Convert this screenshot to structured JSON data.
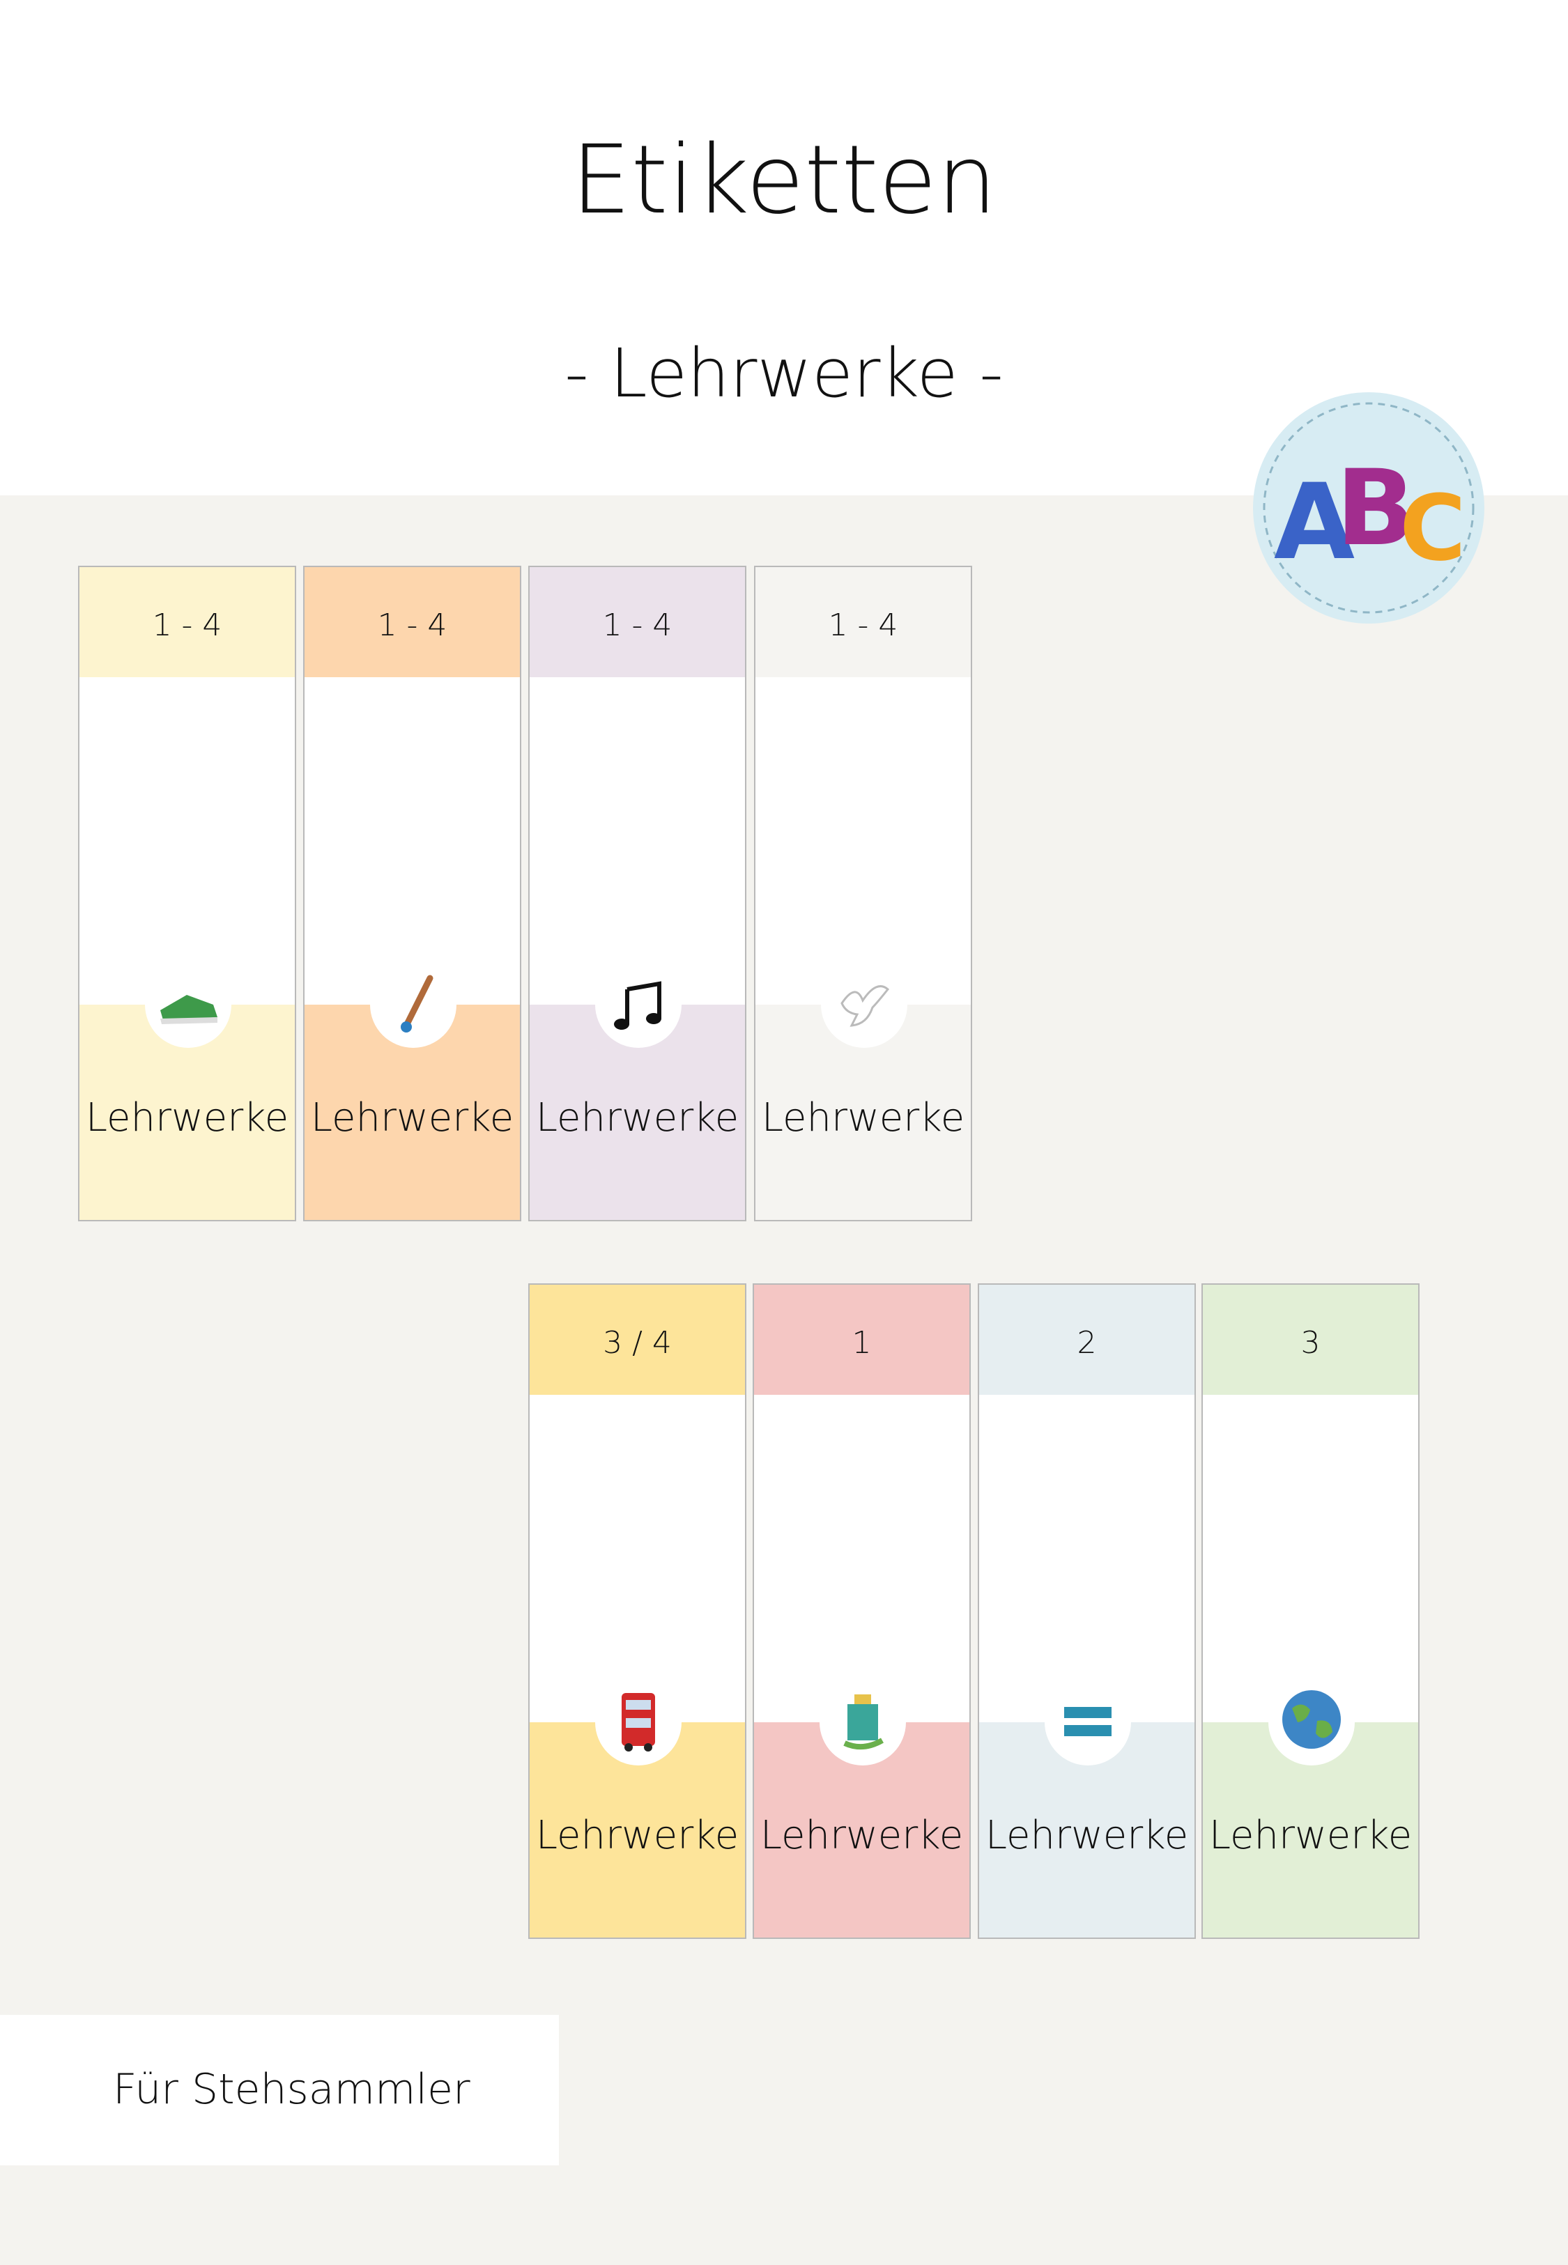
{
  "header": {
    "title": "Etiketten",
    "subtitle": "- Lehrwerke -"
  },
  "logo": {
    "letters": [
      "A",
      "B",
      "C"
    ]
  },
  "labels": {
    "row1": [
      {
        "top": "1 - 4",
        "bottom": "Lehrwerke"
      },
      {
        "top": "1 - 4",
        "bottom": "Lehrwerke"
      },
      {
        "top": "1 - 4",
        "bottom": "Lehrwerke"
      },
      {
        "top": "1 - 4",
        "bottom": "Lehrwerke"
      }
    ],
    "row2": [
      {
        "top": "3 / 4",
        "bottom": "Lehrwerke"
      },
      {
        "top": "1",
        "bottom": "Lehrwerke"
      },
      {
        "top": "2",
        "bottom": "Lehrwerke"
      },
      {
        "top": "3",
        "bottom": "Lehrwerke"
      }
    ]
  },
  "footer": {
    "text": "Für Stehsammler"
  }
}
